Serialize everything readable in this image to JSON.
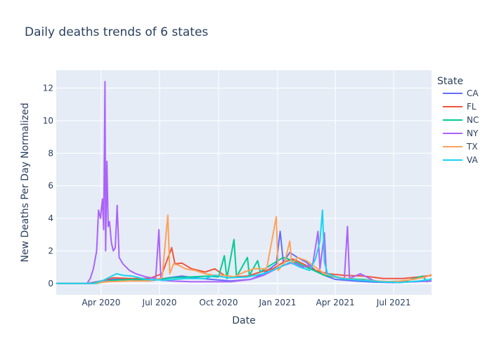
{
  "chart_data": {
    "type": "line",
    "title": "Daily deaths trends of 6 states",
    "xlabel": "Date",
    "ylabel": "New Deaths Per Day Normalized",
    "xlim": [
      "2020-01-22",
      "2021-08-29"
    ],
    "ylim": [
      -0.7,
      13.1
    ],
    "x_ticks": [
      {
        "date": "2020-04-01",
        "label": "Apr 2020"
      },
      {
        "date": "2020-07-01",
        "label": "Jul 2020"
      },
      {
        "date": "2020-10-01",
        "label": "Oct 2020"
      },
      {
        "date": "2021-01-01",
        "label": "Jan 2021"
      },
      {
        "date": "2021-04-01",
        "label": "Apr 2021"
      },
      {
        "date": "2021-07-01",
        "label": "Jul 2021"
      }
    ],
    "y_ticks": [
      0,
      2,
      4,
      6,
      8,
      10,
      12
    ],
    "grid": true,
    "legend": {
      "title": "State",
      "position": "right"
    },
    "background": "#E5ECF6",
    "series": [
      {
        "name": "CA",
        "color": "#636EFA",
        "points": [
          [
            "2020-01-22",
            0
          ],
          [
            "2020-03-10",
            0
          ],
          [
            "2020-03-25",
            0.1
          ],
          [
            "2020-04-15",
            0.25
          ],
          [
            "2020-05-15",
            0.25
          ],
          [
            "2020-06-15",
            0.15
          ],
          [
            "2020-07-15",
            0.35
          ],
          [
            "2020-08-05",
            0.45
          ],
          [
            "2020-08-25",
            0.35
          ],
          [
            "2020-09-20",
            0.25
          ],
          [
            "2020-10-20",
            0.15
          ],
          [
            "2020-11-20",
            0.25
          ],
          [
            "2020-12-10",
            0.6
          ],
          [
            "2020-12-30",
            1.2
          ],
          [
            "2021-01-05",
            3.2
          ],
          [
            "2021-01-10",
            1.3
          ],
          [
            "2021-01-20",
            1.9
          ],
          [
            "2021-02-01",
            1.6
          ],
          [
            "2021-02-15",
            1.3
          ],
          [
            "2021-03-01",
            0.8
          ],
          [
            "2021-03-15",
            0.5
          ],
          [
            "2021-04-01",
            0.25
          ],
          [
            "2021-05-01",
            0.15
          ],
          [
            "2021-06-01",
            0.08
          ],
          [
            "2021-07-01",
            0.05
          ],
          [
            "2021-08-29",
            0.15
          ]
        ]
      },
      {
        "name": "FL",
        "color": "#EF553B",
        "points": [
          [
            "2020-01-22",
            0
          ],
          [
            "2020-03-15",
            0
          ],
          [
            "2020-04-01",
            0.15
          ],
          [
            "2020-04-20",
            0.35
          ],
          [
            "2020-05-15",
            0.3
          ],
          [
            "2020-06-15",
            0.3
          ],
          [
            "2020-07-05",
            0.6
          ],
          [
            "2020-07-20",
            2.2
          ],
          [
            "2020-07-25",
            1.2
          ],
          [
            "2020-08-05",
            1.25
          ],
          [
            "2020-08-20",
            0.9
          ],
          [
            "2020-09-10",
            0.7
          ],
          [
            "2020-09-25",
            0.9
          ],
          [
            "2020-10-10",
            0.5
          ],
          [
            "2020-10-25",
            0.4
          ],
          [
            "2020-11-15",
            0.45
          ],
          [
            "2020-12-05",
            0.7
          ],
          [
            "2020-12-25",
            0.9
          ],
          [
            "2021-01-10",
            1.3
          ],
          [
            "2021-01-25",
            1.5
          ],
          [
            "2021-02-10",
            1.2
          ],
          [
            "2021-03-01",
            0.8
          ],
          [
            "2021-03-20",
            0.6
          ],
          [
            "2021-04-15",
            0.5
          ],
          [
            "2021-05-15",
            0.45
          ],
          [
            "2021-06-15",
            0.3
          ],
          [
            "2021-07-15",
            0.3
          ],
          [
            "2021-08-10",
            0.4
          ],
          [
            "2021-08-29",
            0.5
          ]
        ]
      },
      {
        "name": "NC",
        "color": "#00CC96",
        "points": [
          [
            "2020-01-22",
            0
          ],
          [
            "2020-03-25",
            0
          ],
          [
            "2020-04-20",
            0.2
          ],
          [
            "2020-05-20",
            0.25
          ],
          [
            "2020-06-20",
            0.2
          ],
          [
            "2020-07-20",
            0.35
          ],
          [
            "2020-08-20",
            0.4
          ],
          [
            "2020-09-15",
            0.45
          ],
          [
            "2020-10-01",
            0.4
          ],
          [
            "2020-10-10",
            1.7
          ],
          [
            "2020-10-14",
            0.3
          ],
          [
            "2020-10-25",
            2.7
          ],
          [
            "2020-10-29",
            0.4
          ],
          [
            "2020-11-15",
            1.6
          ],
          [
            "2020-11-18",
            0.5
          ],
          [
            "2020-12-01",
            1.4
          ],
          [
            "2020-12-05",
            0.7
          ],
          [
            "2020-12-20",
            1.1
          ],
          [
            "2021-01-10",
            1.6
          ],
          [
            "2021-01-25",
            1.4
          ],
          [
            "2021-02-15",
            1.0
          ],
          [
            "2021-03-15",
            0.5
          ],
          [
            "2021-04-15",
            0.3
          ],
          [
            "2021-05-15",
            0.25
          ],
          [
            "2021-06-15",
            0.1
          ],
          [
            "2021-07-20",
            0.15
          ],
          [
            "2021-08-15",
            0.45
          ],
          [
            "2021-08-22",
            0.1
          ],
          [
            "2021-08-29",
            0.3
          ]
        ]
      },
      {
        "name": "NY",
        "color": "#AB63FA",
        "points": [
          [
            "2020-01-22",
            0
          ],
          [
            "2020-03-10",
            0
          ],
          [
            "2020-03-15",
            0.3
          ],
          [
            "2020-03-20",
            0.9
          ],
          [
            "2020-03-25",
            2.0
          ],
          [
            "2020-03-28",
            4.5
          ],
          [
            "2020-03-31",
            4.0
          ],
          [
            "2020-04-03",
            5.2
          ],
          [
            "2020-04-05",
            3.3
          ],
          [
            "2020-04-07",
            12.4
          ],
          [
            "2020-04-08",
            2.0
          ],
          [
            "2020-04-10",
            7.5
          ],
          [
            "2020-04-12",
            3.5
          ],
          [
            "2020-04-14",
            3.8
          ],
          [
            "2020-04-17",
            2.5
          ],
          [
            "2020-04-20",
            2.0
          ],
          [
            "2020-04-23",
            2.2
          ],
          [
            "2020-04-26",
            4.8
          ],
          [
            "2020-04-29",
            1.6
          ],
          [
            "2020-05-05",
            1.2
          ],
          [
            "2020-05-15",
            0.8
          ],
          [
            "2020-05-25",
            0.6
          ],
          [
            "2020-06-10",
            0.4
          ],
          [
            "2020-06-25",
            0.3
          ],
          [
            "2020-06-30",
            3.3
          ],
          [
            "2020-07-03",
            0.2
          ],
          [
            "2020-07-20",
            0.15
          ],
          [
            "2020-08-20",
            0.1
          ],
          [
            "2020-09-20",
            0.1
          ],
          [
            "2020-10-20",
            0.1
          ],
          [
            "2020-11-20",
            0.25
          ],
          [
            "2020-12-10",
            0.5
          ],
          [
            "2020-12-25",
            0.8
          ],
          [
            "2021-01-10",
            1.1
          ],
          [
            "2021-01-25",
            1.3
          ],
          [
            "2021-02-10",
            1.0
          ],
          [
            "2021-02-25",
            1.2
          ],
          [
            "2021-03-05",
            3.2
          ],
          [
            "2021-03-08",
            0.9
          ],
          [
            "2021-03-15",
            3.1
          ],
          [
            "2021-03-18",
            0.6
          ],
          [
            "2021-04-01",
            0.4
          ],
          [
            "2021-04-15",
            0.3
          ],
          [
            "2021-04-20",
            3.5
          ],
          [
            "2021-04-23",
            0.3
          ],
          [
            "2021-05-10",
            0.6
          ],
          [
            "2021-06-01",
            0.15
          ],
          [
            "2021-07-01",
            0.05
          ],
          [
            "2021-08-29",
            0.15
          ]
        ]
      },
      {
        "name": "TX",
        "color": "#FFA15A",
        "points": [
          [
            "2020-01-22",
            0
          ],
          [
            "2020-03-20",
            0
          ],
          [
            "2020-04-10",
            0.1
          ],
          [
            "2020-05-15",
            0.15
          ],
          [
            "2020-06-15",
            0.15
          ],
          [
            "2020-07-05",
            0.35
          ],
          [
            "2020-07-14",
            4.2
          ],
          [
            "2020-07-17",
            0.6
          ],
          [
            "2020-07-23",
            1.2
          ],
          [
            "2020-08-01",
            1.1
          ],
          [
            "2020-08-10",
            0.9
          ],
          [
            "2020-08-25",
            0.8
          ],
          [
            "2020-09-10",
            0.6
          ],
          [
            "2020-09-25",
            0.5
          ],
          [
            "2020-10-10",
            0.5
          ],
          [
            "2020-10-25",
            0.4
          ],
          [
            "2020-11-10",
            0.7
          ],
          [
            "2020-11-25",
            0.9
          ],
          [
            "2020-12-15",
            0.9
          ],
          [
            "2020-12-30",
            4.1
          ],
          [
            "2021-01-02",
            0.8
          ],
          [
            "2021-01-12",
            1.3
          ],
          [
            "2021-01-20",
            2.6
          ],
          [
            "2021-01-23",
            1.2
          ],
          [
            "2021-02-01",
            1.6
          ],
          [
            "2021-02-15",
            1.4
          ],
          [
            "2021-03-01",
            1.0
          ],
          [
            "2021-03-15",
            0.6
          ],
          [
            "2021-04-01",
            0.4
          ],
          [
            "2021-05-01",
            0.25
          ],
          [
            "2021-06-01",
            0.15
          ],
          [
            "2021-07-01",
            0.1
          ],
          [
            "2021-08-01",
            0.25
          ],
          [
            "2021-08-20",
            0.4
          ],
          [
            "2021-08-29",
            0.55
          ]
        ]
      },
      {
        "name": "VA",
        "color": "#19D3F3",
        "points": [
          [
            "2020-01-22",
            0
          ],
          [
            "2020-03-20",
            0
          ],
          [
            "2020-04-05",
            0.2
          ],
          [
            "2020-04-15",
            0.4
          ],
          [
            "2020-04-25",
            0.6
          ],
          [
            "2020-05-05",
            0.5
          ],
          [
            "2020-05-20",
            0.45
          ],
          [
            "2020-06-10",
            0.25
          ],
          [
            "2020-07-10",
            0.2
          ],
          [
            "2020-08-10",
            0.3
          ],
          [
            "2020-09-10",
            0.3
          ],
          [
            "2020-09-25",
            0.5
          ],
          [
            "2020-10-15",
            0.35
          ],
          [
            "2020-11-15",
            0.4
          ],
          [
            "2020-12-10",
            0.6
          ],
          [
            "2020-12-30",
            0.9
          ],
          [
            "2021-01-20",
            1.3
          ],
          [
            "2021-02-05",
            1.0
          ],
          [
            "2021-02-20",
            0.8
          ],
          [
            "2021-03-01",
            1.5
          ],
          [
            "2021-03-08",
            2.6
          ],
          [
            "2021-03-12",
            4.5
          ],
          [
            "2021-03-15",
            1.3
          ],
          [
            "2021-03-20",
            0.6
          ],
          [
            "2021-04-10",
            0.3
          ],
          [
            "2021-05-10",
            0.2
          ],
          [
            "2021-06-10",
            0.1
          ],
          [
            "2021-07-10",
            0.05
          ],
          [
            "2021-08-10",
            0.15
          ],
          [
            "2021-08-29",
            0.25
          ]
        ]
      }
    ]
  }
}
